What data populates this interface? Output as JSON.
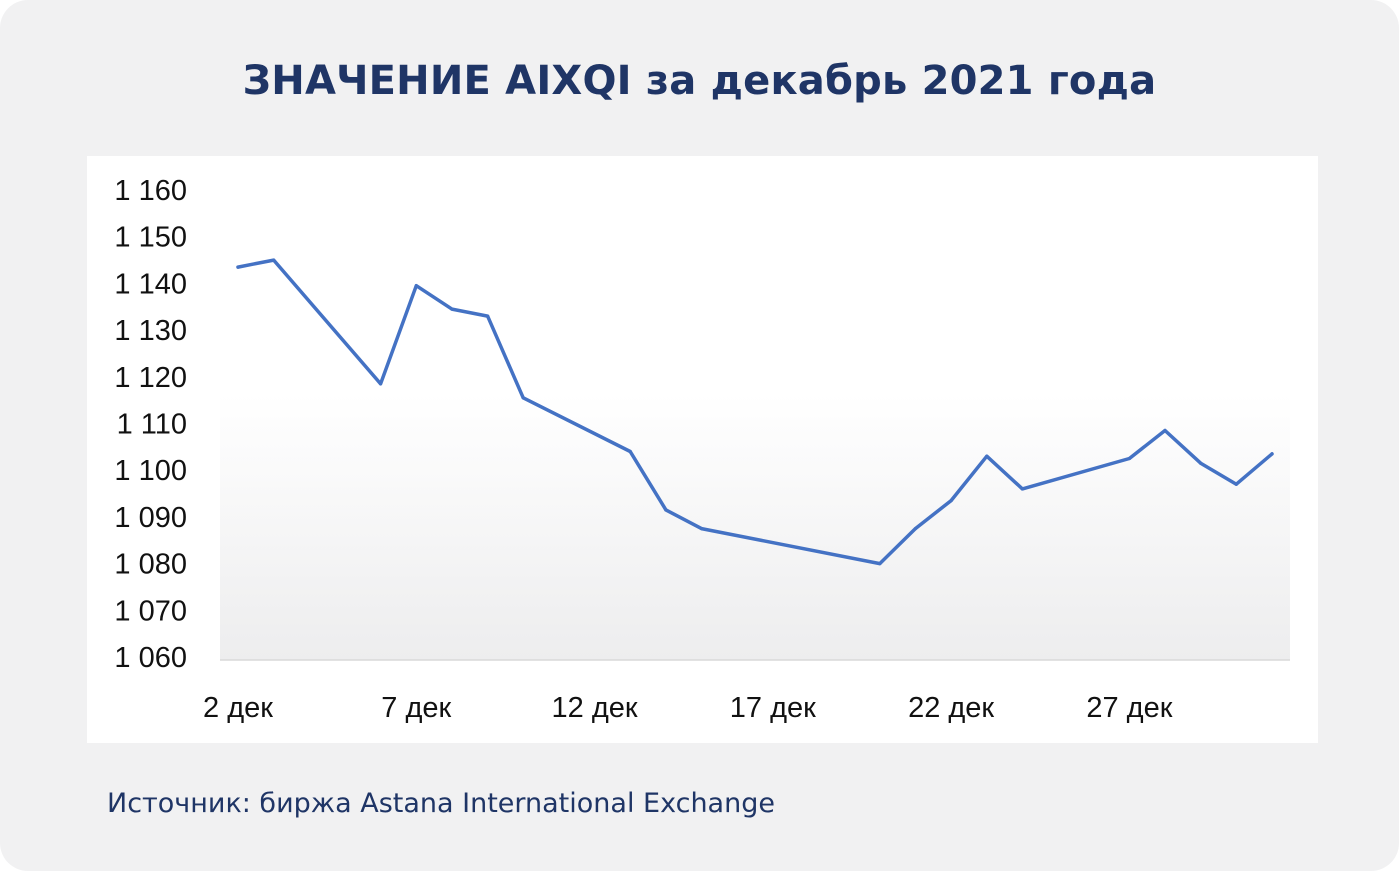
{
  "header": {
    "title": "ЗНАЧЕНИЕ AIXQI за декабрь 2021 года"
  },
  "footer": {
    "source": "Источник: биржа Astana International Exchange"
  },
  "colors": {
    "line": "#4472c4",
    "title": "#1f3566",
    "background": "#f1f1f2",
    "panel": "#ffffff"
  },
  "chart_data": {
    "type": "line",
    "title": "ЗНАЧЕНИЕ AIXQI за декабрь 2021 года",
    "xlabel": "",
    "ylabel": "",
    "ylim": [
      1060,
      1160
    ],
    "yticks": [
      1060,
      1070,
      1080,
      1090,
      1100,
      1110,
      1120,
      1130,
      1140,
      1150,
      1160
    ],
    "ytick_labels": [
      "1 060",
      "1 070",
      "1 080",
      "1 090",
      "1 100",
      "1 110",
      "1 120",
      "1 130",
      "1 140",
      "1 150",
      "1 160"
    ],
    "xlim": [
      2,
      31
    ],
    "xticks": [
      2,
      7,
      12,
      17,
      22,
      27
    ],
    "xtick_labels": [
      "2 дек",
      "7 дек",
      "12 дек",
      "17 дек",
      "22 дек",
      "27 дек"
    ],
    "grid": false,
    "legend": "none",
    "series": [
      {
        "x": [
          2,
          3,
          6,
          7,
          8,
          9,
          10,
          13,
          14,
          15,
          20,
          21,
          22,
          23,
          24,
          27,
          28,
          29,
          30,
          31
        ],
        "values": [
          1143.5,
          1145,
          1118.5,
          1139.5,
          1134.5,
          1133,
          1115.5,
          1104,
          1091.5,
          1087.5,
          1080,
          1087.5,
          1093.5,
          1103,
          1096,
          1102.5,
          1108.5,
          1101.5,
          1097,
          1103.5
        ]
      }
    ]
  }
}
